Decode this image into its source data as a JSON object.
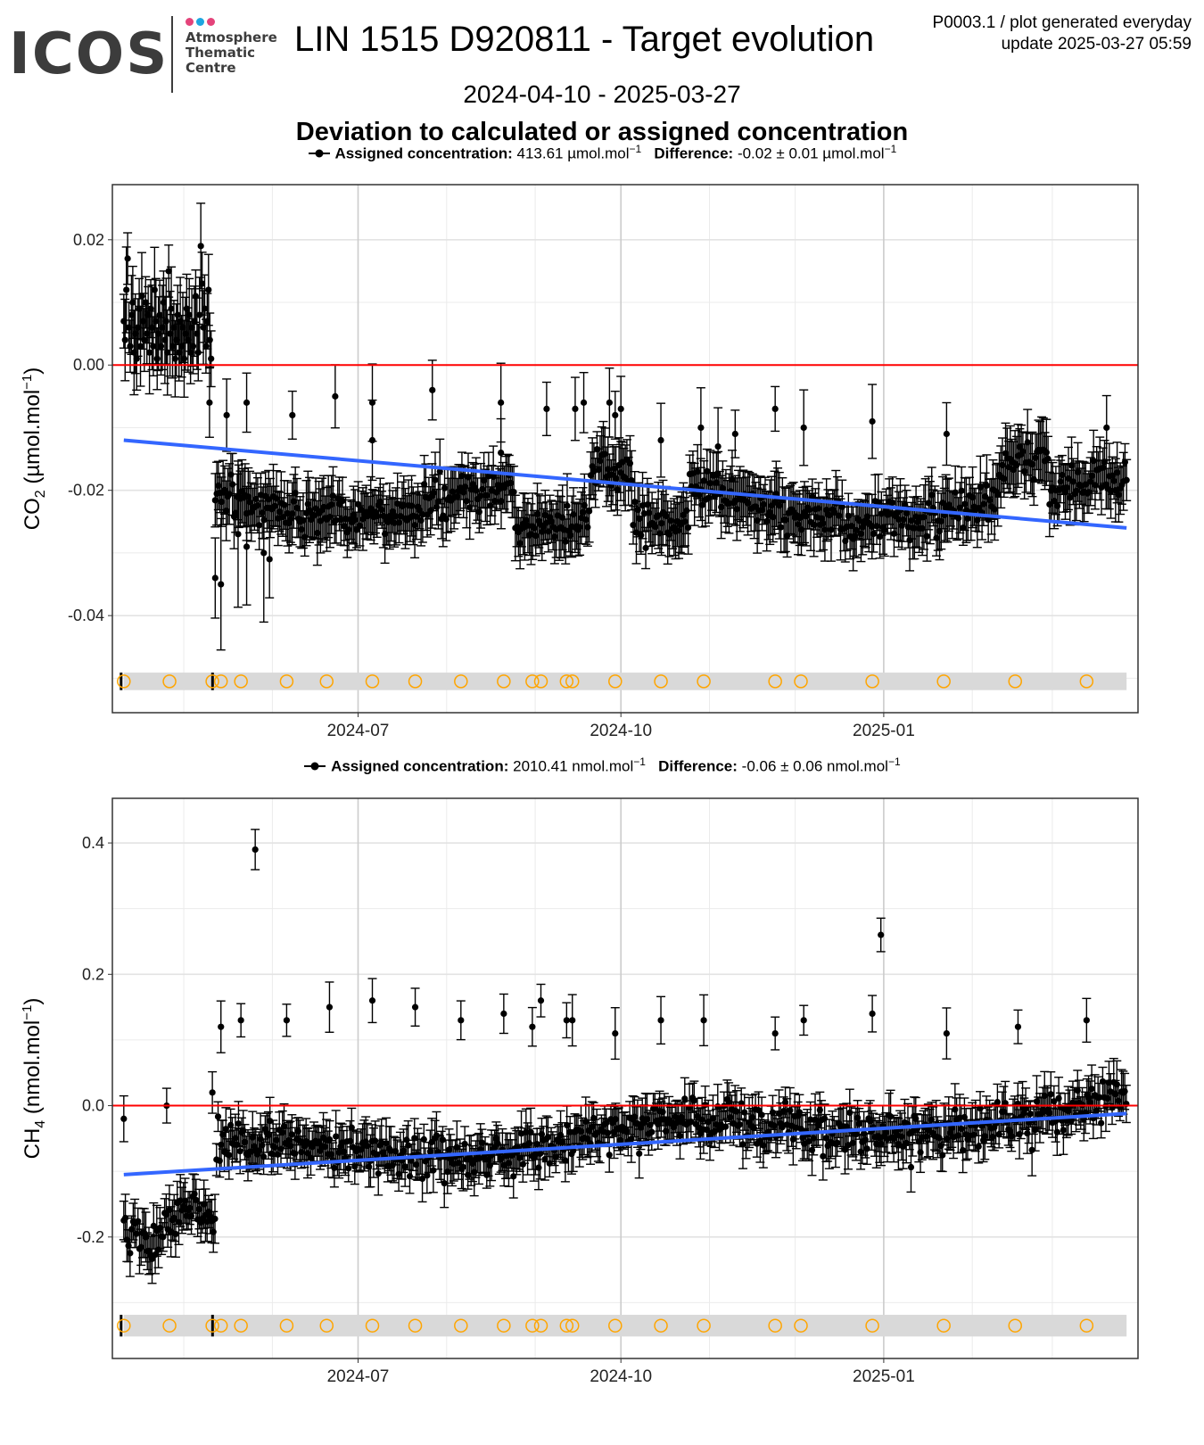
{
  "header": {
    "logo_main": "ICOS",
    "logo_lines": [
      "Atmosphere",
      "Thematic",
      "Centre"
    ],
    "logo_dot_colors": [
      "#e4437a",
      "#1ea6e0",
      "#e4437a"
    ],
    "title": "LIN 1515 D920811 - Target evolution",
    "product_line1": "P0003.1 / plot generated everyday",
    "product_line2": "update  2025-03-27 05:59",
    "date_range": "2024-04-10 - 2025-03-27",
    "subtitle": "Deviation to calculated or assigned concentration"
  },
  "colors": {
    "points": "#000000",
    "zero_line": "#ff0000",
    "trend_line": "#3366ff",
    "markers": "#ffa500",
    "marker_band": "#d9d9d9",
    "grid_major": "#cccccc",
    "grid_minor": "#ebebeb"
  },
  "legend_co2": {
    "assigned_label": "Assigned concentration:",
    "assigned_value": "413.61 µmol.mol",
    "difference_label": "Difference:",
    "difference_value": "-0.02 ± 0.01 µmol.mol",
    "sup": "−1"
  },
  "legend_ch4": {
    "assigned_label": "Assigned concentration:",
    "assigned_value": "2010.41 nmol.mol",
    "difference_label": "Difference:",
    "difference_value": "-0.06 ± 0.06 nmol.mol",
    "sup": "−1"
  },
  "chart_data": [
    {
      "type": "scatter",
      "species": "CO2",
      "ylabel_main": "CO",
      "ylabel_sub": "2",
      "ylabel_unit": " (µmol.mol",
      "ylabel_sup": "−1",
      "ylabel_close": ")",
      "x_start": "2024-04-10",
      "x_end": "2025-03-27",
      "xlim": [
        "2024-04-06",
        "2025-03-31"
      ],
      "ylim": [
        -0.0555,
        0.0288
      ],
      "y_ticks": [
        0.02,
        0.0,
        -0.02,
        -0.04
      ],
      "y_tick_labels": [
        "0.02",
        "0.00",
        "-0.02",
        "-0.04"
      ],
      "x_ticks": [
        "2024-07-01",
        "2024-10-01",
        "2025-01-01"
      ],
      "x_tick_labels": [
        "2024-07",
        "2024-10",
        "2025-01"
      ],
      "reference_line": 0.0,
      "trend": {
        "x": [
          "2024-04-10",
          "2025-03-27"
        ],
        "y": [
          -0.012,
          -0.026
        ]
      },
      "series": [
        {
          "x": "2024-04-10",
          "y": [
            0.007,
            0.004,
            0.012,
            0.017,
            0.006,
            0.003,
            0.008,
            0.01,
            0.002,
            0.005,
            0.001,
            0.006,
            0.009,
            0.003,
            0.011,
            0.007,
            0.004,
            0.01,
            0.005,
            0.008,
            0.002,
            0.009,
            0.006,
            0.003,
            0.012,
            0.007,
            0.001,
            0.005,
            0.008,
            0.003,
            0.006,
            0.01,
            0.004,
            0.007,
            0.002,
            0.015,
            0.005,
            0.009,
            0.003,
            0.006,
            0.001,
            0.004,
            0.008,
            0.002,
            0.007,
            0.003,
            0.006,
            0.001,
            0.005,
            0.009,
            0.004,
            0.008,
            0.002,
            0.006,
            0.003,
            0.007,
            0.011,
            0.005,
            0.002,
            0.008,
            0.019,
            0.013,
            0.006,
            0.009,
            0.003,
            0.007,
            0.012,
            0.004,
            0.001
          ]
        }
      ],
      "low_points": [
        {
          "x": "2024-05-12",
          "y": -0.034
        },
        {
          "x": "2024-05-14",
          "y": -0.035
        },
        {
          "x": "2024-05-20",
          "y": -0.027
        },
        {
          "x": "2024-05-23",
          "y": -0.029
        },
        {
          "x": "2024-05-29",
          "y": -0.03
        },
        {
          "x": "2024-05-31",
          "y": -0.031
        }
      ],
      "outliers_high": [
        {
          "x": "2024-05-10",
          "y": -0.006
        },
        {
          "x": "2024-05-16",
          "y": -0.008
        },
        {
          "x": "2024-05-23",
          "y": -0.006
        },
        {
          "x": "2024-06-08",
          "y": -0.008
        },
        {
          "x": "2024-06-23",
          "y": -0.005
        },
        {
          "x": "2024-07-06",
          "y": -0.006
        },
        {
          "x": "2024-07-06",
          "y": -0.012
        },
        {
          "x": "2024-07-27",
          "y": -0.004
        },
        {
          "x": "2024-08-20",
          "y": -0.006
        },
        {
          "x": "2024-08-20",
          "y": -0.014
        },
        {
          "x": "2024-09-05",
          "y": -0.007
        },
        {
          "x": "2024-09-15",
          "y": -0.007
        },
        {
          "x": "2024-09-18",
          "y": -0.006
        },
        {
          "x": "2024-09-27",
          "y": -0.006
        },
        {
          "x": "2024-09-29",
          "y": -0.008
        },
        {
          "x": "2024-10-01",
          "y": -0.007
        },
        {
          "x": "2024-10-15",
          "y": -0.012
        },
        {
          "x": "2024-10-29",
          "y": -0.01
        },
        {
          "x": "2024-11-04",
          "y": -0.013
        },
        {
          "x": "2024-11-10",
          "y": -0.011
        },
        {
          "x": "2024-11-24",
          "y": -0.007
        },
        {
          "x": "2024-12-04",
          "y": -0.01
        },
        {
          "x": "2024-12-28",
          "y": -0.009
        },
        {
          "x": "2025-01-23",
          "y": -0.011
        },
        {
          "x": "2025-03-20",
          "y": -0.01
        }
      ],
      "markers": [
        "2024-04-10",
        "2024-04-26",
        "2024-05-11",
        "2024-05-14",
        "2024-05-21",
        "2024-06-06",
        "2024-06-20",
        "2024-07-06",
        "2024-07-21",
        "2024-08-06",
        "2024-08-21",
        "2024-08-31",
        "2024-09-03",
        "2024-09-12",
        "2024-09-14",
        "2024-09-29",
        "2024-10-15",
        "2024-10-30",
        "2024-11-24",
        "2024-12-03",
        "2024-12-28",
        "2025-01-22",
        "2025-02-16",
        "2025-03-13"
      ]
    },
    {
      "type": "scatter",
      "species": "CH4",
      "ylabel_main": "CH",
      "ylabel_sub": "4",
      "ylabel_unit": " (nmol.mol",
      "ylabel_sup": "−1",
      "ylabel_close": ")",
      "x_start": "2024-04-10",
      "x_end": "2025-03-27",
      "xlim": [
        "2024-04-06",
        "2025-03-31"
      ],
      "ylim": [
        -0.385,
        0.468
      ],
      "y_ticks": [
        0.4,
        0.2,
        0.0,
        -0.2
      ],
      "y_tick_labels": [
        "0.4",
        "0.2",
        "0.0",
        "-0.2"
      ],
      "x_ticks": [
        "2024-07-01",
        "2024-10-01",
        "2025-01-01"
      ],
      "x_tick_labels": [
        "2024-07",
        "2024-10",
        "2025-01"
      ],
      "reference_line": 0.0,
      "trend": {
        "x": [
          "2024-04-10",
          "2025-03-27"
        ],
        "y": [
          -0.105,
          -0.012
        ]
      },
      "outliers_high": [
        {
          "x": "2024-04-10",
          "y": -0.02
        },
        {
          "x": "2024-04-25",
          "y": 0.0
        },
        {
          "x": "2024-05-11",
          "y": 0.02
        },
        {
          "x": "2024-05-14",
          "y": 0.12
        },
        {
          "x": "2024-05-21",
          "y": 0.13
        },
        {
          "x": "2024-05-26",
          "y": 0.39
        },
        {
          "x": "2024-06-06",
          "y": 0.13
        },
        {
          "x": "2024-06-21",
          "y": 0.15
        },
        {
          "x": "2024-07-06",
          "y": 0.16
        },
        {
          "x": "2024-07-21",
          "y": 0.15
        },
        {
          "x": "2024-08-06",
          "y": 0.13
        },
        {
          "x": "2024-08-21",
          "y": 0.14
        },
        {
          "x": "2024-08-31",
          "y": 0.12
        },
        {
          "x": "2024-09-03",
          "y": 0.16
        },
        {
          "x": "2024-09-12",
          "y": 0.13
        },
        {
          "x": "2024-09-14",
          "y": 0.13
        },
        {
          "x": "2024-09-29",
          "y": 0.11
        },
        {
          "x": "2024-10-15",
          "y": 0.13
        },
        {
          "x": "2024-10-30",
          "y": 0.13
        },
        {
          "x": "2024-11-24",
          "y": 0.11
        },
        {
          "x": "2024-12-04",
          "y": 0.13
        },
        {
          "x": "2024-12-28",
          "y": 0.14
        },
        {
          "x": "2024-12-31",
          "y": 0.26
        },
        {
          "x": "2025-01-23",
          "y": 0.11
        },
        {
          "x": "2025-02-17",
          "y": 0.12
        },
        {
          "x": "2025-03-13",
          "y": 0.13
        }
      ],
      "markers": [
        "2024-04-10",
        "2024-04-26",
        "2024-05-11",
        "2024-05-14",
        "2024-05-21",
        "2024-06-06",
        "2024-06-20",
        "2024-07-06",
        "2024-07-21",
        "2024-08-06",
        "2024-08-21",
        "2024-08-31",
        "2024-09-03",
        "2024-09-12",
        "2024-09-14",
        "2024-09-29",
        "2024-10-15",
        "2024-10-30",
        "2024-11-24",
        "2024-12-03",
        "2024-12-28",
        "2025-01-22",
        "2025-02-16",
        "2025-03-13"
      ]
    }
  ]
}
